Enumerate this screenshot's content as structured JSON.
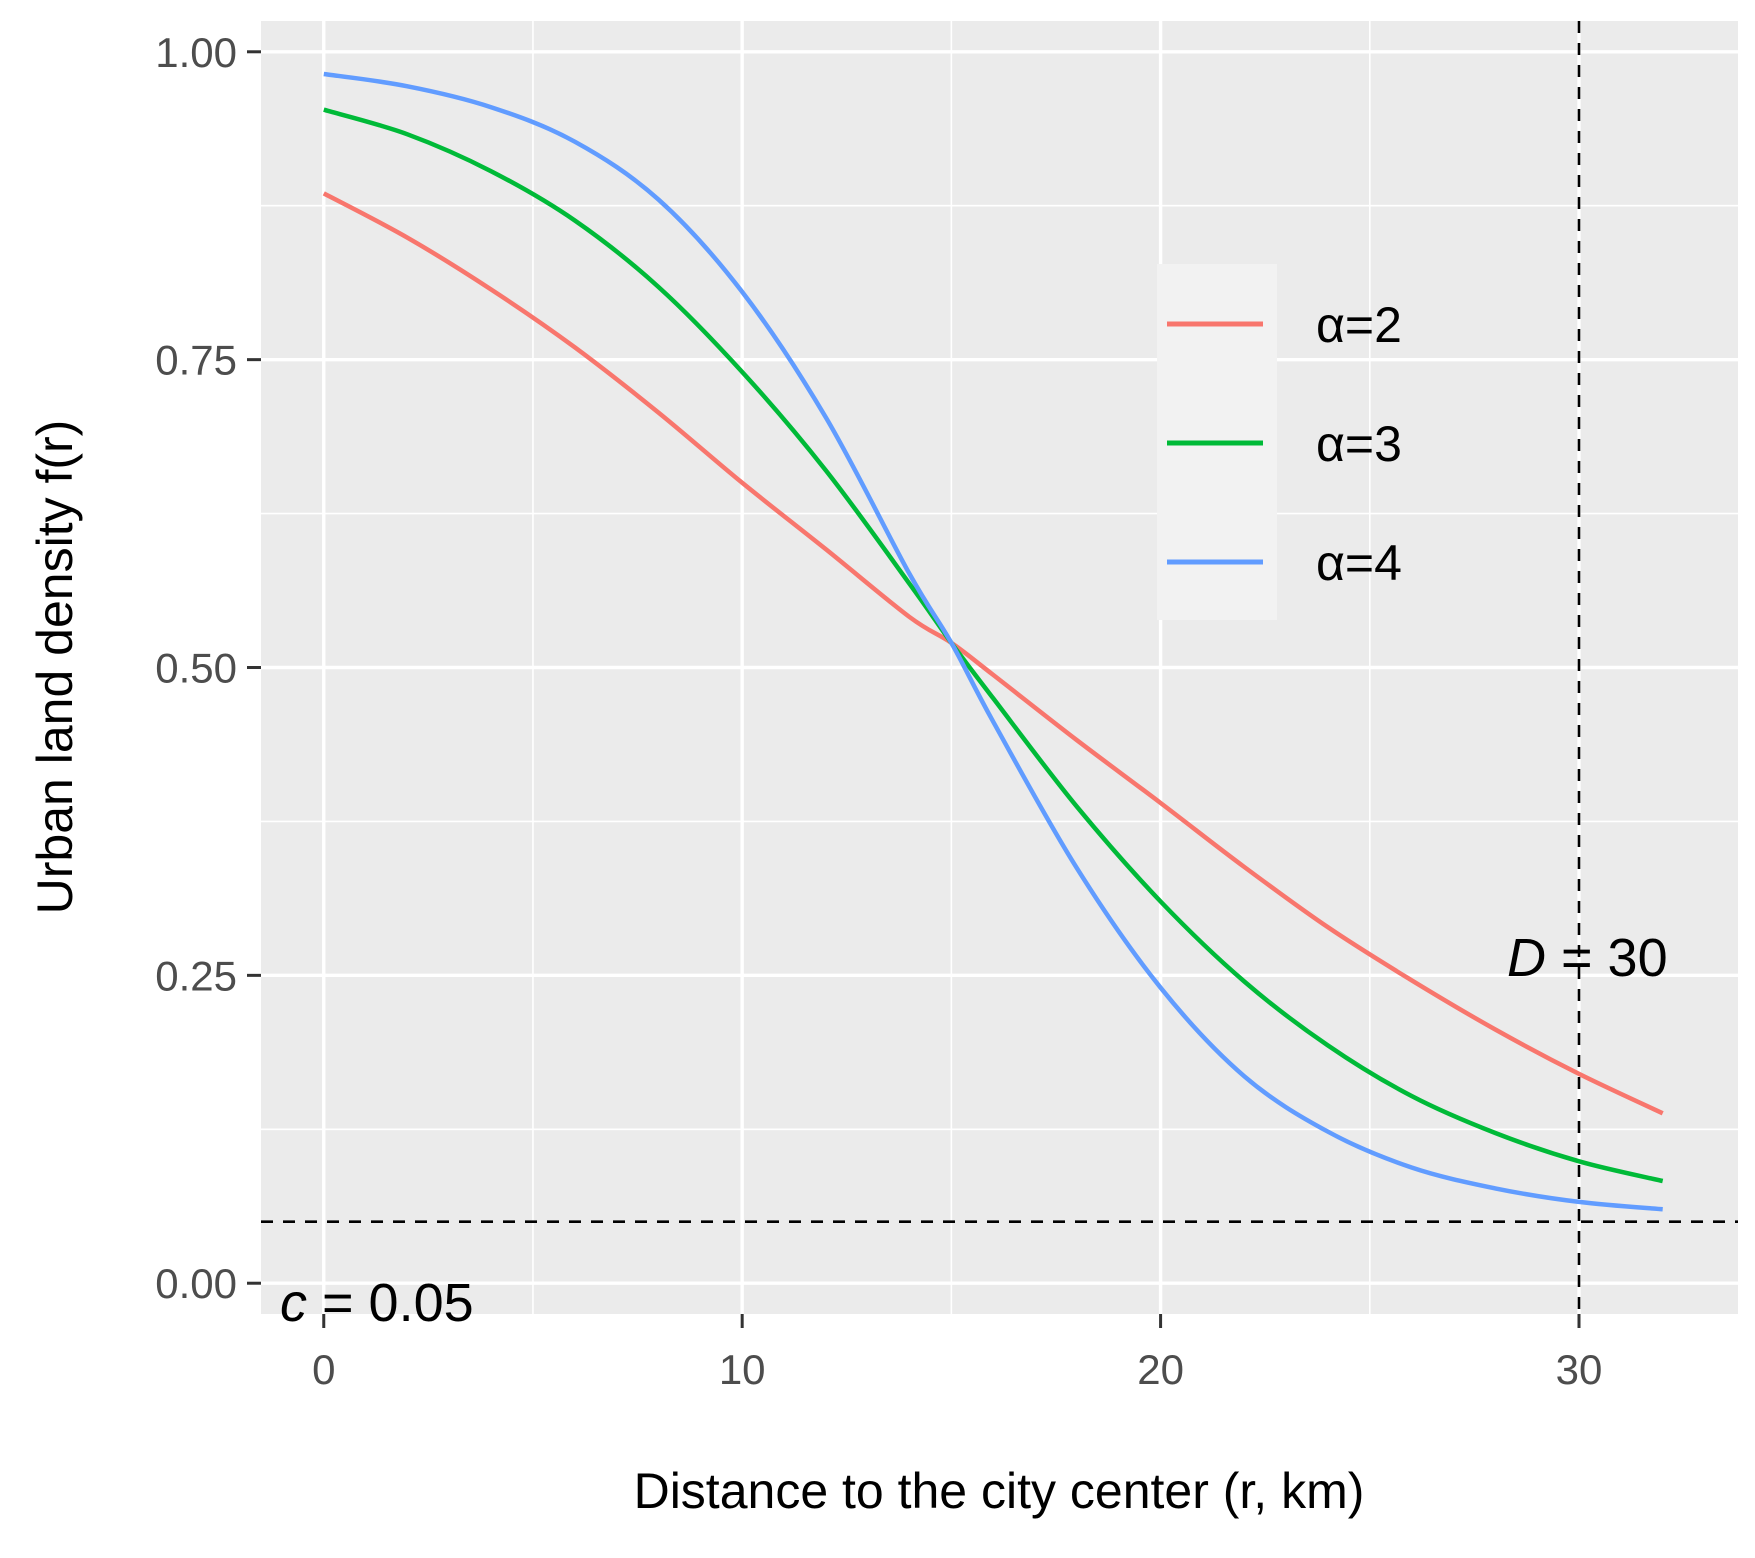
{
  "chart_data": {
    "type": "line",
    "title": "",
    "xlabel": "Distance to the city center (r, km)",
    "ylabel": "Urban land density f(r)",
    "xlim": [
      -1.5,
      33.8
    ],
    "ylim": [
      -0.025,
      1.025
    ],
    "x_ticks": [
      0,
      10,
      20,
      30
    ],
    "x_tick_labels": [
      "0",
      "10",
      "20",
      "30"
    ],
    "y_ticks": [
      0,
      0.25,
      0.5,
      0.75,
      1.0
    ],
    "y_tick_labels": [
      "0.00",
      "0.25",
      "0.50",
      "0.75",
      "1.00"
    ],
    "grid": true,
    "legend_position": "upper-right-inside",
    "x": [
      0,
      2,
      4,
      6,
      8,
      10,
      12,
      14,
      15,
      16,
      18,
      20,
      22,
      24,
      26,
      28,
      30,
      32
    ],
    "series": [
      {
        "name": "α=2",
        "color": "#F8766D",
        "values": [
          0.885,
          0.849,
          0.807,
          0.76,
          0.707,
          0.65,
          0.596,
          0.541,
          0.52,
          0.494,
          0.441,
          0.39,
          0.338,
          0.289,
          0.246,
          0.206,
          0.17,
          0.138
        ]
      },
      {
        "name": "α=3",
        "color": "#00BA38",
        "values": [
          0.953,
          0.933,
          0.903,
          0.863,
          0.809,
          0.74,
          0.66,
          0.568,
          0.52,
          0.475,
          0.387,
          0.31,
          0.245,
          0.193,
          0.152,
          0.122,
          0.099,
          0.083
        ]
      },
      {
        "name": "α=4",
        "color": "#619CFF",
        "values": [
          0.982,
          0.972,
          0.955,
          0.927,
          0.88,
          0.805,
          0.703,
          0.576,
          0.52,
          0.456,
          0.337,
          0.24,
          0.168,
          0.123,
          0.094,
          0.077,
          0.066,
          0.06
        ]
      }
    ],
    "reference_lines": [
      {
        "orientation": "horizontal",
        "value": 0.05,
        "style": "dashed",
        "label_var": "c",
        "label_rest": " = 0.05"
      },
      {
        "orientation": "vertical",
        "value": 30,
        "style": "dashed",
        "label_var": "D",
        "label_rest": " = 30"
      }
    ]
  }
}
